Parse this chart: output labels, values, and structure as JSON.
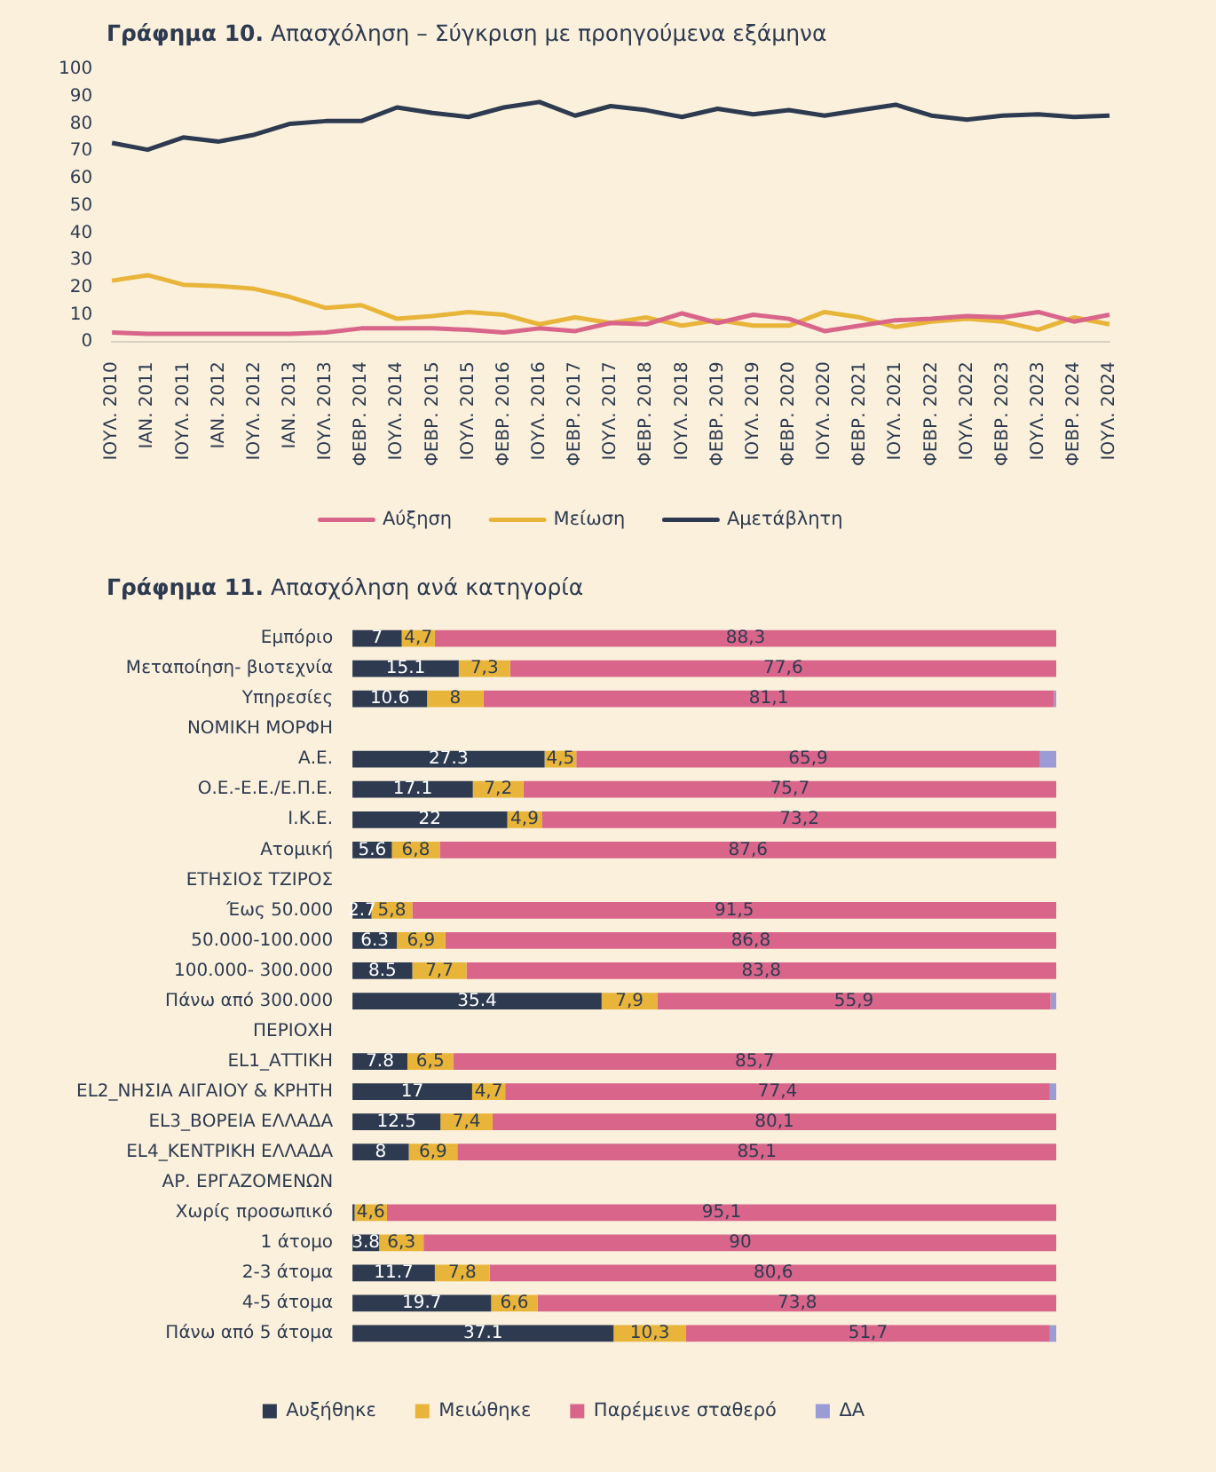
{
  "chart_data": [
    {
      "type": "line",
      "title": "Γράφημα 10. Απασχόληση – Σύγκριση με προηγούμενα εξάμηνα",
      "categories": [
        "ΙΟΥΛ. 2010",
        "ΙΑΝ. 2011",
        "ΙΟΥΛ. 2011",
        "ΙΑΝ. 2012",
        "ΙΟΥΛ. 2012",
        "ΙΑΝ. 2013",
        "ΙΟΥΛ. 2013",
        "ΦΕΒΡ. 2014",
        "ΙΟΥΛ. 2014",
        "ΦΕΒΡ. 2015",
        "ΙΟΥΛ. 2015",
        "ΦΕΒΡ. 2016",
        "ΙΟΥΛ. 2016",
        "ΦΕΒΡ. 2017",
        "ΙΟΥΛ. 2017",
        "ΦΕΒΡ. 2018",
        "ΙΟΥΛ. 2018",
        "ΦΕΒΡ. 2019",
        "ΙΟΥΛ. 2019",
        "ΦΕΒΡ. 2020",
        "ΙΟΥΛ. 2020",
        "ΦΕΒΡ. 2021",
        "ΙΟΥΛ. 2021",
        "ΦΕΒΡ. 2022",
        "ΙΟΥΛ. 2022",
        "ΦΕΒΡ. 2023",
        "ΙΟΥΛ. 2023",
        "ΦΕΒΡ. 2024",
        "ΙΟΥΛ. 2024"
      ],
      "series": [
        {
          "name": "Αύξηση",
          "color": "#d9668a",
          "values": [
            3.5,
            3,
            3,
            3,
            3,
            3,
            3.5,
            5,
            5,
            5,
            4.5,
            3.5,
            5,
            4,
            7,
            6.5,
            10.5,
            7,
            10,
            8.5,
            4,
            6,
            8,
            8.5,
            9.5,
            9,
            11,
            7.5,
            10
          ]
        },
        {
          "name": "Μείωση",
          "color": "#e8b53a",
          "values": [
            22.5,
            24.5,
            21,
            20.5,
            19.5,
            16.5,
            12.5,
            13.5,
            8.5,
            9.5,
            11,
            10,
            6.5,
            9,
            7,
            9,
            6,
            8,
            6,
            6,
            11,
            9,
            5.5,
            7.5,
            8.5,
            7.5,
            4.5,
            9,
            6.5
          ]
        },
        {
          "name": "Αμετάβλητη",
          "color": "#2d3a50",
          "values": [
            73,
            70.5,
            75,
            73.5,
            76,
            80,
            81,
            81,
            86,
            84,
            82.5,
            86,
            88,
            83,
            86.5,
            85,
            82.5,
            85.5,
            83.5,
            85,
            83,
            85,
            87,
            83,
            81.5,
            83,
            83.5,
            82.5,
            83
          ]
        }
      ],
      "ylim": [
        0,
        100
      ],
      "yticks": [
        0,
        10,
        20,
        30,
        40,
        50,
        60,
        70,
        80,
        90,
        100
      ],
      "grid": false,
      "legend": "bottom",
      "marker": "none",
      "line_style": "solid"
    },
    {
      "type": "bar",
      "title": "Γράφημα 11. Απασχόληση ανά κατηγορία",
      "orientation": "horizontal",
      "stacked": true,
      "categories": [
        "Εμπόριο",
        "Μεταποίηση- βιοτεχνία",
        "Υπηρεσίες",
        "ΝΟΜΙΚΗ ΜΟΡΦΗ",
        "Α.Ε.",
        "Ο.Ε.-Ε.Ε./Ε.Π.Ε.",
        "Ι.Κ.Ε.",
        "Ατομική",
        "ΕΤΗΣΙΟΣ ΤΖΙΡΟΣ",
        "Έως 50.000",
        "50.000-100.000",
        "100.000- 300.000",
        "Πάνω από 300.000",
        "ΠΕΡΙΟΧΗ",
        "EL1_ΑΤΤΙΚΗ",
        "EL2_ΝΗΣΙΑ ΑΙΓΑΙΟΥ & ΚΡΗΤΗ",
        "EL3_ΒΟΡΕΙΑ ΕΛΛΑΔΑ",
        "EL4_ΚΕΝΤΡΙΚΗ ΕΛΛΑΔΑ",
        "ΑΡ. ΕΡΓΑΖΟΜΕΝΩΝ",
        "Χωρίς προσωπικό",
        "1 άτομο",
        "2-3 άτομα",
        "4-5 άτομα",
        "Πάνω από 5 άτομα"
      ],
      "series": [
        {
          "name": "Αυξήθηκε",
          "color": "#2d3a50",
          "values": [
            7,
            15.1,
            10.6,
            null,
            27.3,
            17.1,
            22,
            5.6,
            null,
            2.7,
            6.3,
            8.5,
            35.4,
            null,
            7.8,
            17,
            12.5,
            8,
            null,
            0.3,
            3.8,
            11.7,
            19.7,
            37.1
          ],
          "value_labels": [
            "7",
            "15.1",
            "10.6",
            null,
            "27.3",
            "17.1",
            "22",
            "5.6",
            null,
            "2.7",
            "6.3",
            "8.5",
            "35.4",
            null,
            "7.8",
            "17",
            "12.5",
            "8",
            null,
            null,
            "3.8",
            "11.7",
            "19.7",
            "37.1"
          ]
        },
        {
          "name": "Μειώθηκε",
          "color": "#e8b53a",
          "values": [
            4.7,
            7.3,
            8,
            null,
            4.5,
            7.2,
            4.9,
            6.8,
            null,
            5.8,
            6.9,
            7.7,
            7.9,
            null,
            6.5,
            4.7,
            7.4,
            6.9,
            null,
            4.6,
            6.3,
            7.8,
            6.6,
            10.3
          ],
          "value_labels": [
            "4,7",
            "7,3",
            "8",
            null,
            "4,5",
            "7,2",
            "4,9",
            "6,8",
            null,
            "5,8",
            "6,9",
            "7,7",
            "7,9",
            null,
            "6,5",
            "4,7",
            "7,4",
            "6,9",
            null,
            "4,6",
            "6,3",
            "7,8",
            "6,6",
            "10,3"
          ]
        },
        {
          "name": "Παρέμεινε σταθερό",
          "color": "#d9668a",
          "values": [
            88.3,
            77.6,
            81.1,
            null,
            65.9,
            75.7,
            73.2,
            87.6,
            null,
            91.5,
            86.8,
            83.8,
            55.9,
            null,
            85.7,
            77.4,
            80.1,
            85.1,
            null,
            95.1,
            90,
            80.6,
            73.8,
            51.7
          ],
          "value_labels": [
            "88,3",
            "77,6",
            "81,1",
            null,
            "65,9",
            "75,7",
            "73,2",
            "87,6",
            null,
            "91,5",
            "86,8",
            "83,8",
            "55,9",
            null,
            "85,7",
            "77,4",
            "80,1",
            "85,1",
            null,
            "95,1",
            "90",
            "80,6",
            "73,8",
            "51,7"
          ]
        },
        {
          "name": "ΔΑ",
          "color": "#9b9bd6",
          "values": [
            0,
            0,
            0.3,
            null,
            2.3,
            0,
            0,
            0,
            null,
            0,
            0,
            0,
            0.8,
            null,
            0,
            0.9,
            0,
            0,
            null,
            0,
            0,
            0,
            0,
            0.9
          ]
        }
      ],
      "xlim": [
        0,
        100
      ],
      "tick_labels": "y",
      "grid": false,
      "legend": "bottom"
    }
  ]
}
